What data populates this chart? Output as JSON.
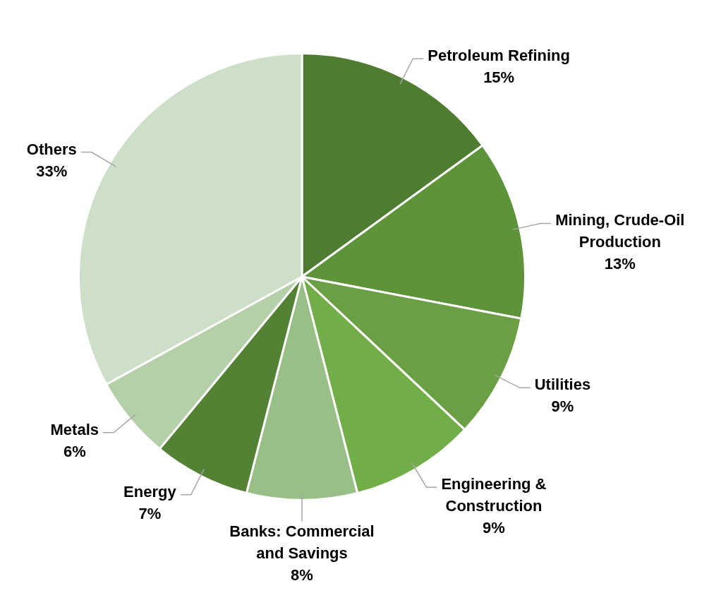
{
  "chart_data": {
    "type": "pie",
    "categories": [
      "Petroleum Refining",
      "Mining, Crude-Oil Production",
      "Utilities",
      "Engineering & Construction",
      "Banks: Commercial and Savings",
      "Energy",
      "Metals",
      "Others"
    ],
    "values": [
      15,
      13,
      9,
      9,
      8,
      7,
      6,
      33
    ],
    "value_labels": [
      "15%",
      "13%",
      "9%",
      "9%",
      "8%",
      "7%",
      "6%",
      "33%"
    ],
    "colors": [
      "#4e7c31",
      "#5e9439",
      "#6a9f43",
      "#72ae48",
      "#98bf85",
      "#548235",
      "#b5d0a8",
      "#cddfc8"
    ],
    "legend": false
  }
}
